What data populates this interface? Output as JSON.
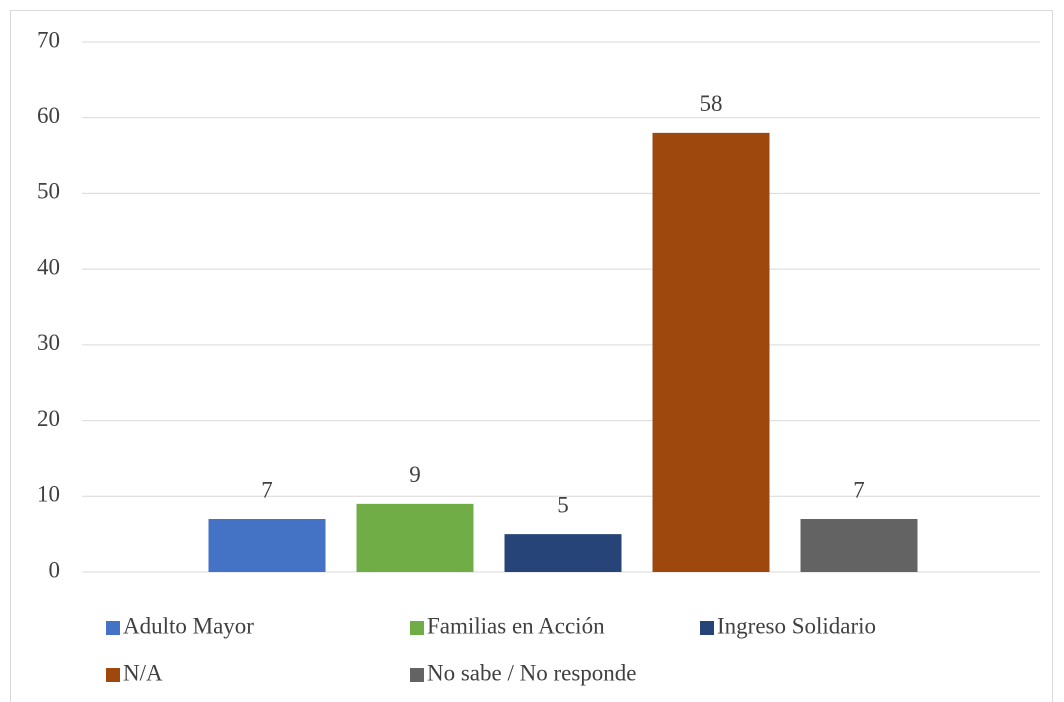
{
  "chart_data": {
    "type": "bar",
    "series": [
      {
        "name": "Adulto Mayor",
        "color": "#4472c4",
        "values": [
          7
        ]
      },
      {
        "name": "Familias en Acción",
        "color": "#70ad47",
        "values": [
          9
        ]
      },
      {
        "name": "Ingreso Solidario",
        "color": "#264478",
        "values": [
          5
        ]
      },
      {
        "name": "N/A",
        "color": "#9e480e",
        "values": [
          58
        ]
      },
      {
        "name": "No sabe / No responde",
        "color": "#636363",
        "values": [
          7
        ]
      }
    ],
    "ylim": [
      0,
      70
    ],
    "yticks": [
      0,
      10,
      20,
      30,
      40,
      50,
      60,
      70
    ],
    "grid": true,
    "legend": "bottom"
  }
}
